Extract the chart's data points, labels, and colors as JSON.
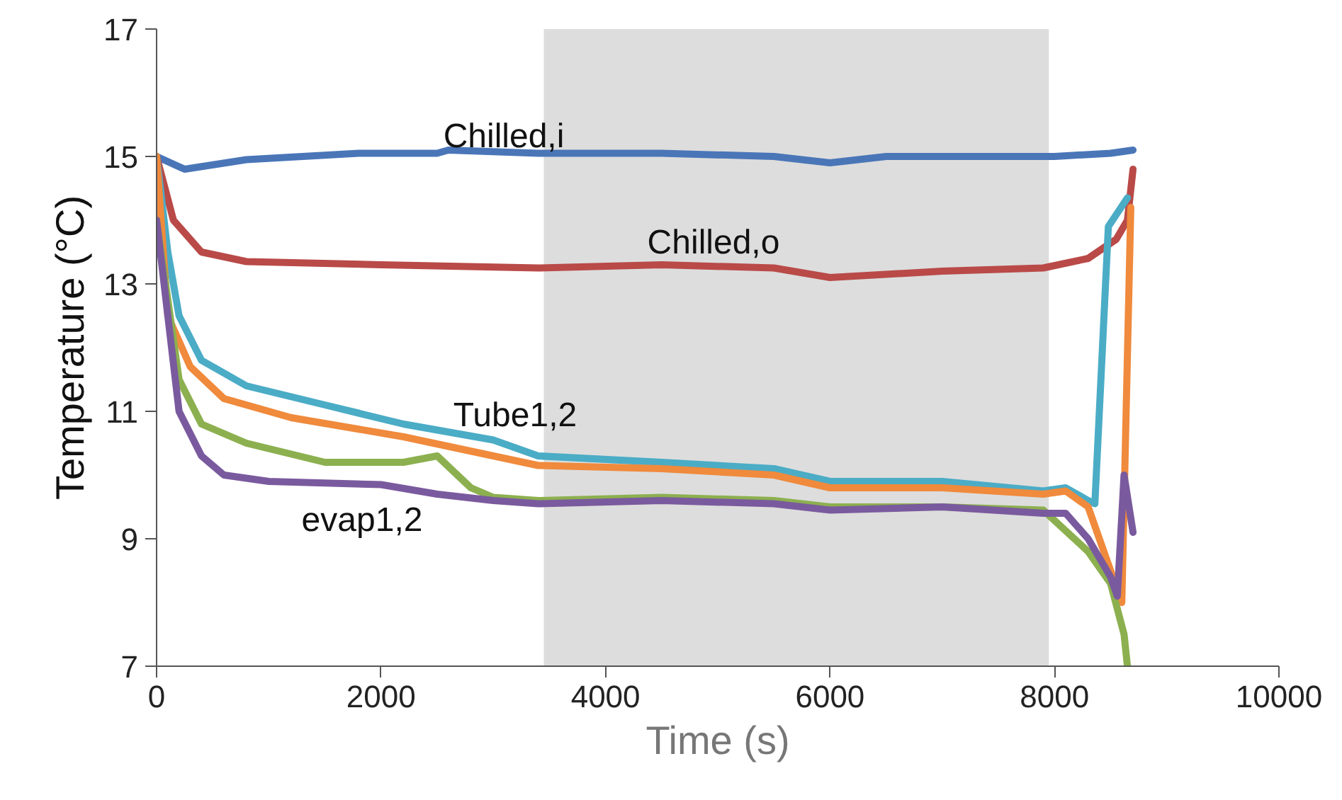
{
  "chart_data": {
    "type": "line",
    "xlabel": "Time (s)",
    "ylabel": "Temperature (°C)",
    "xlim": [
      0,
      10000
    ],
    "ylim": [
      7,
      17
    ],
    "xticks": [
      0,
      2000,
      4000,
      6000,
      8000,
      10000
    ],
    "yticks": [
      7,
      9,
      11,
      13,
      15,
      17
    ],
    "grid": false,
    "marker": "none",
    "line_style": "solid",
    "bands": [
      {
        "axis": "x",
        "from": 3450,
        "to": 7950,
        "color": "#dddddd"
      }
    ],
    "annotations": [
      "Chilled,i",
      "Chilled,o",
      "Tube1,2",
      "evap1,2"
    ],
    "series": [
      {
        "color": "#4a76b8",
        "x": [
          0,
          250,
          800,
          1800,
          2500,
          2600,
          3400,
          4500,
          5500,
          6000,
          6500,
          7500,
          8000,
          8500,
          8700
        ],
        "values": [
          15.0,
          14.8,
          14.95,
          15.05,
          15.05,
          15.1,
          15.05,
          15.05,
          15.0,
          14.9,
          15.0,
          15.0,
          15.0,
          15.05,
          15.1
        ]
      },
      {
        "color": "#b94a48",
        "x": [
          0,
          150,
          400,
          800,
          2000,
          3400,
          4500,
          5500,
          6000,
          7000,
          7900,
          8300,
          8550,
          8650,
          8700
        ],
        "values": [
          15.0,
          14.0,
          13.5,
          13.35,
          13.3,
          13.25,
          13.3,
          13.25,
          13.1,
          13.2,
          13.25,
          13.4,
          13.7,
          14.0,
          14.8
        ]
      },
      {
        "color": "#4bacc6",
        "x": [
          0,
          100,
          200,
          400,
          800,
          1500,
          2200,
          3000,
          3400,
          4500,
          5500,
          6000,
          7000,
          7900,
          8100,
          8300,
          8360,
          8480,
          8650
        ],
        "values": [
          15.0,
          13.5,
          12.5,
          11.8,
          11.4,
          11.1,
          10.8,
          10.55,
          10.3,
          10.2,
          10.1,
          9.9,
          9.9,
          9.75,
          9.8,
          9.6,
          9.55,
          13.9,
          14.35
        ]
      },
      {
        "color": "#f08a3c",
        "x": [
          0,
          100,
          300,
          600,
          1200,
          2200,
          3000,
          3400,
          4500,
          5500,
          6000,
          7000,
          7900,
          8100,
          8300,
          8600,
          8680
        ],
        "values": [
          15.0,
          12.5,
          11.7,
          11.2,
          10.9,
          10.6,
          10.3,
          10.15,
          10.1,
          10.0,
          9.8,
          9.8,
          9.7,
          9.75,
          9.5,
          8.0,
          14.2
        ]
      },
      {
        "color": "#8cb04f",
        "x": [
          0,
          200,
          400,
          800,
          1500,
          2200,
          2500,
          2800,
          3000,
          3400,
          4500,
          5500,
          6000,
          7000,
          7900,
          8300,
          8500,
          8620,
          8650
        ],
        "values": [
          14.0,
          11.5,
          10.8,
          10.5,
          10.2,
          10.2,
          10.3,
          9.8,
          9.65,
          9.6,
          9.65,
          9.6,
          9.5,
          9.5,
          9.45,
          8.8,
          8.3,
          7.5,
          7.0
        ]
      },
      {
        "color": "#7a5a9e",
        "x": [
          0,
          200,
          400,
          600,
          1000,
          2000,
          2500,
          3000,
          3400,
          4500,
          5500,
          6000,
          7000,
          7900,
          8100,
          8300,
          8500,
          8560,
          8620,
          8700
        ],
        "values": [
          14.0,
          11.0,
          10.3,
          10.0,
          9.9,
          9.85,
          9.7,
          9.6,
          9.55,
          9.6,
          9.55,
          9.45,
          9.5,
          9.4,
          9.4,
          9.0,
          8.4,
          8.1,
          10.0,
          9.1
        ]
      }
    ]
  }
}
